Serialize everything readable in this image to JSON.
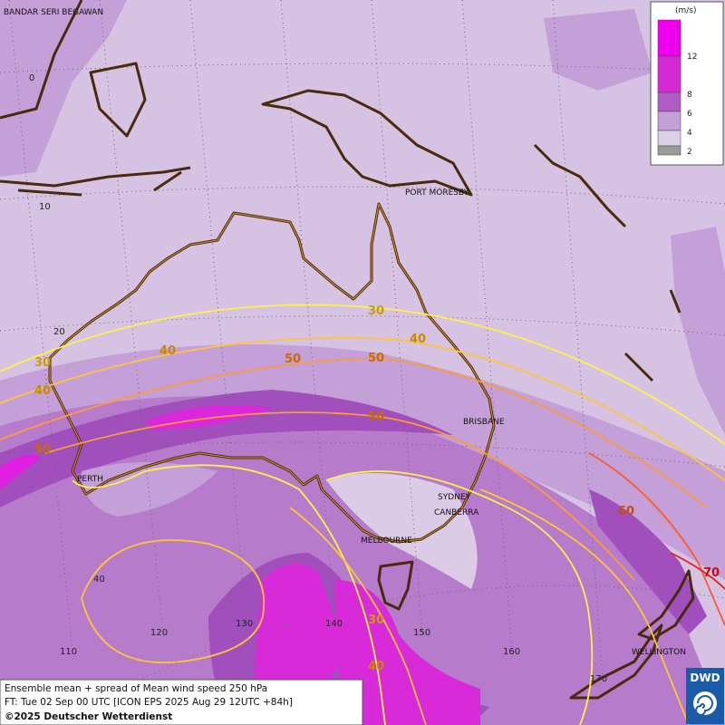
{
  "map": {
    "places": [
      "BANDAR SERI BEGAWAN",
      "PORT MORESBY",
      "BRISBANE",
      "PERTH",
      "SYDNEY",
      "CANBERRA",
      "MELBOURNE",
      "WELLINGTON"
    ],
    "latitude_labels": [
      "0",
      "10",
      "20",
      "40"
    ],
    "longitude_labels": [
      "110",
      "120",
      "130",
      "140",
      "150",
      "160",
      "170"
    ],
    "contour_labels": [
      30,
      40,
      50,
      50,
      30,
      40,
      40,
      50,
      50,
      60,
      70,
      30,
      40
    ]
  },
  "legend": {
    "unit": "(m/s)",
    "labels": [
      "12",
      "8",
      "6",
      "4",
      "2"
    ]
  },
  "footer": {
    "lines": [
      "Ensemble mean + spread of Mean wind speed 250 hPa",
      "FT: Tue 02 Sep 00 UTC [ICON EPS 2025 Aug 29 12UTC +84h]",
      "©2025 Deutscher Wetterdienst"
    ]
  },
  "logo": "DWD"
}
